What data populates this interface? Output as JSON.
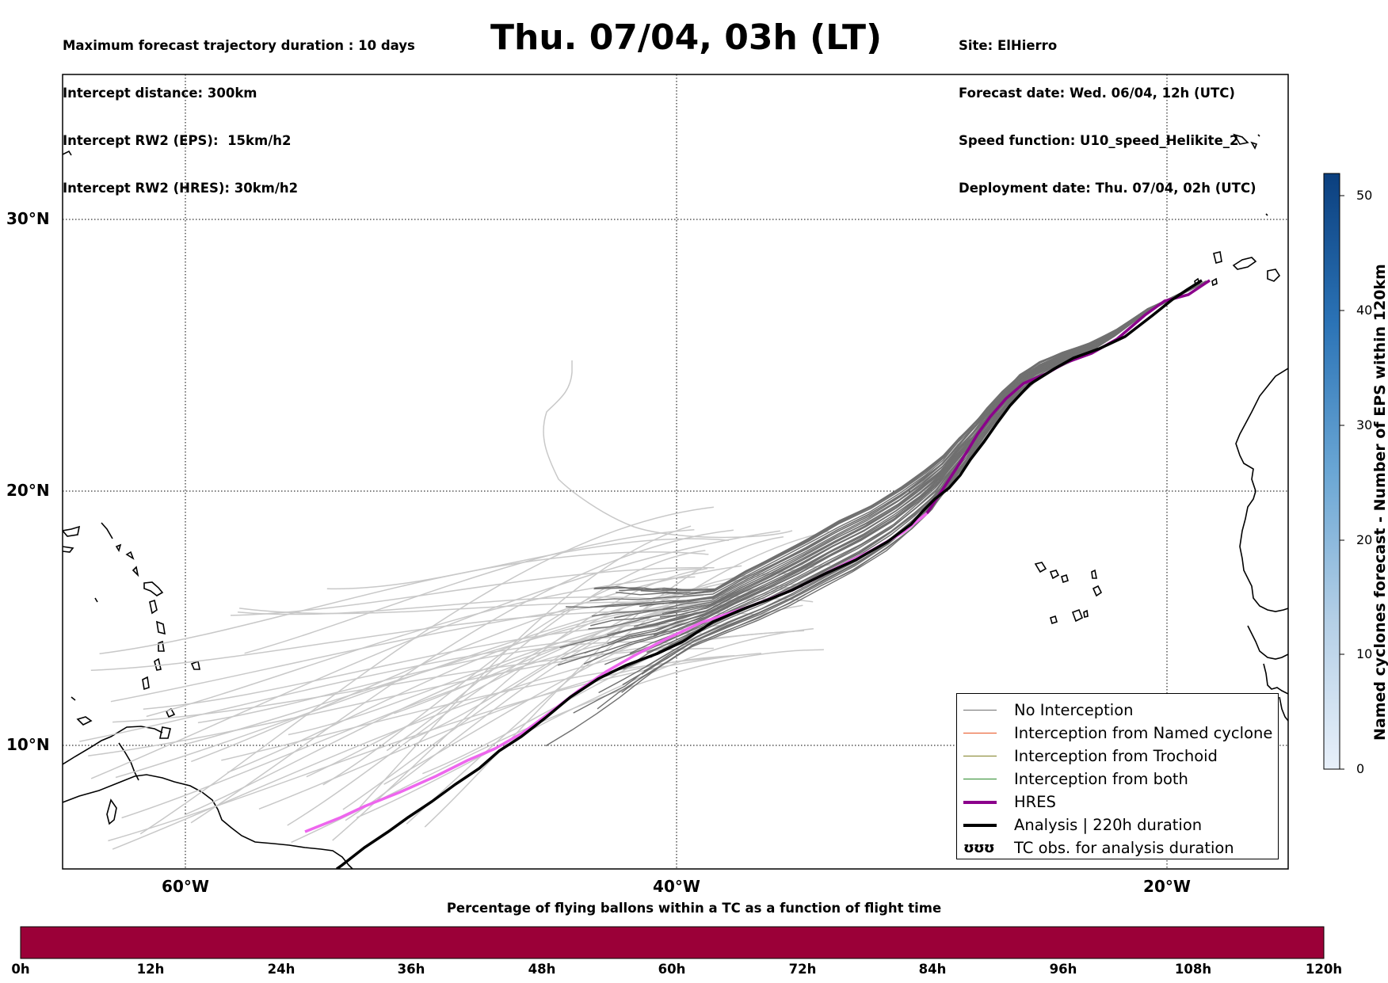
{
  "header": {
    "left_lines": [
      "Maximum forecast trajectory duration : 10 days",
      "Intercept distance: 300km",
      "Intercept RW2 (EPS):  15km/h2",
      "Intercept RW2 (HRES): 30km/h2"
    ],
    "title": "Thu. 07/04, 03h (LT)",
    "right_lines": [
      "Site: ElHierro",
      "Forecast date: Wed. 06/04, 12h (UTC)",
      "Speed function: U10_speed_Helikite_2",
      "Deployment date: Thu. 07/04, 02h (UTC)"
    ]
  },
  "map": {
    "lon_range": [
      -65,
      -15
    ],
    "lat_range": [
      5.5,
      35
    ],
    "lat_labels": [
      "30°N",
      "20°N",
      "10°N"
    ],
    "lon_labels": [
      "60°W",
      "40°W",
      "20°W"
    ]
  },
  "legend": {
    "items": [
      {
        "label": "No Interception",
        "color": "#707070"
      },
      {
        "label": "Interception from Named cyclone",
        "color": "#e8521f"
      },
      {
        "label": "Interception from Trochoid",
        "color": "#808024"
      },
      {
        "label": "Interception from both",
        "color": "#2a8a2a"
      },
      {
        "label": "HRES",
        "color": "#8b008b"
      },
      {
        "label": "Analysis | 220h duration",
        "color": "#000000"
      },
      {
        "label": "TC obs. for analysis duration",
        "symbol": "ʊʊʊ"
      }
    ]
  },
  "colorbar": {
    "title": "Named cyclones forecast - Number of EPS within 120km",
    "ticks": [
      "0",
      "10",
      "20",
      "30",
      "40",
      "50"
    ],
    "range": [
      0,
      52
    ]
  },
  "bottom_bar": {
    "title": "Percentage of flying ballons within a TC as a function of flight time",
    "ticks": [
      "0h",
      "12h",
      "24h",
      "36h",
      "48h",
      "60h",
      "72h",
      "84h",
      "96h",
      "108h",
      "120h"
    ],
    "color": "#9b0038"
  },
  "colors": {
    "no_interception": "#707070",
    "eps_faded": "#c8c8c8",
    "hres_purple": "#8b008b",
    "hres_pink": "#ee66ee",
    "analysis": "#000000"
  }
}
